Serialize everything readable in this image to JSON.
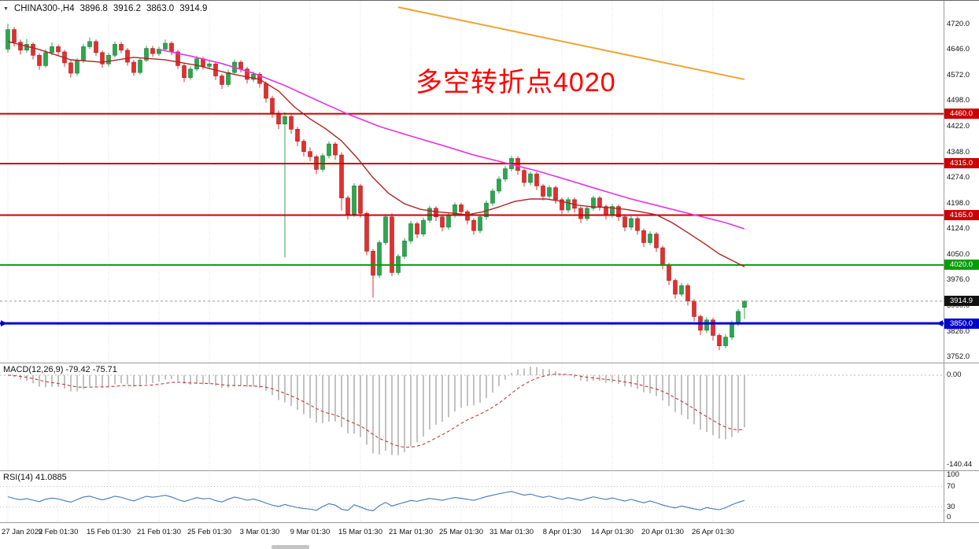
{
  "header": {
    "symbol_period": "CHINA300-,H4",
    "open": "3896.8",
    "high": "3916.2",
    "low": "3863.0",
    "close": "3914.9"
  },
  "annotation": {
    "text": "多空转折点4020",
    "color": "#FF0000"
  },
  "colors": {
    "bull": "#2EA64E",
    "bull_border": "#157A33",
    "bear": "#E03030",
    "bear_border": "#A61E1E",
    "ma_fast": "#B22222",
    "ma_slow": "#E632E6",
    "trendline": "#EFA431",
    "macd_hist": "#B3B3B3",
    "macd_signal": "#C03A3A",
    "rsi_line": "#4178B8",
    "grid": "#DCDCDC",
    "separator": "#9A9A9A",
    "current_price_badge": "#111111",
    "current_price_line": "#999999"
  },
  "price_scale": {
    "ticks": [
      "4720.0",
      "4646.0",
      "4572.0",
      "4498.0",
      "4422.0",
      "4348.0",
      "4274.0",
      "4198.0",
      "4124.0",
      "4050.0",
      "3976.0",
      "3900.0",
      "3826.0",
      "3752.0"
    ]
  },
  "time_axis": {
    "labels": [
      {
        "text": "27 Jan 2022",
        "bar": 0
      },
      {
        "text": "9 Feb 01:30",
        "bar": 8
      },
      {
        "text": "15 Feb 01:30",
        "bar": 16
      },
      {
        "text": "21 Feb 01:30",
        "bar": 24
      },
      {
        "text": "25 Feb 01:30",
        "bar": 32
      },
      {
        "text": "3 Mar 01:30",
        "bar": 40
      },
      {
        "text": "9 Mar 01:30",
        "bar": 48
      },
      {
        "text": "15 Mar 01:30",
        "bar": 56
      },
      {
        "text": "21 Mar 01:30",
        "bar": 64
      },
      {
        "text": "25 Mar 01:30",
        "bar": 72
      },
      {
        "text": "31 Mar 01:30",
        "bar": 80
      },
      {
        "text": "8 Apr 01:30",
        "bar": 88
      },
      {
        "text": "14 Apr 01:30",
        "bar": 96
      },
      {
        "text": "20 Apr 01:30",
        "bar": 104
      },
      {
        "text": "26 Apr 01:30",
        "bar": 112
      }
    ]
  },
  "hlines": [
    {
      "price": 4460.0,
      "label": "4460.0",
      "color": "#CC0000",
      "width": 2,
      "arrows": false
    },
    {
      "price": 4315.0,
      "label": "4315.0",
      "color": "#CC0000",
      "width": 2,
      "arrows": false
    },
    {
      "price": 4165.0,
      "label": "4165.0",
      "color": "#CC0000",
      "width": 2,
      "arrows": false
    },
    {
      "price": 4020.0,
      "label": "4020.0",
      "color": "#00A000",
      "width": 2,
      "arrows": false
    },
    {
      "price": 3850.0,
      "label": "3850.0",
      "color": "#0000CD",
      "width": 3,
      "arrows": true
    }
  ],
  "current_price": {
    "value": 3914.9,
    "label": "3914.9"
  },
  "indicators": {
    "macd": {
      "label": "MACD(12,26,9)",
      "values_text": "-79.42 -75.71",
      "scale_labels": [
        {
          "text": "0.00",
          "value": 0
        },
        {
          "text": "-140.44",
          "value": -140.44
        }
      ]
    },
    "rsi": {
      "label": "RSI(14)",
      "value_text": "41.0885",
      "levels": [
        70,
        30
      ],
      "scale_labels": [
        {
          "text": "100",
          "value": 100
        },
        {
          "text": "70",
          "value": 70
        },
        {
          "text": "30",
          "value": 30
        },
        {
          "text": "0",
          "value": 0
        }
      ]
    }
  },
  "chart_data": {
    "type": "candlestick",
    "symbol": "CHINA300-",
    "timeframe": "H4",
    "y_axis_range": [
      3752,
      4720
    ],
    "candles": [
      [
        4648,
        4722,
        4638,
        4705
      ],
      [
        4705,
        4712,
        4655,
        4668
      ],
      [
        4668,
        4676,
        4632,
        4645
      ],
      [
        4645,
        4678,
        4638,
        4662
      ],
      [
        4662,
        4668,
        4618,
        4630
      ],
      [
        4630,
        4636,
        4588,
        4600
      ],
      [
        4600,
        4648,
        4594,
        4638
      ],
      [
        4638,
        4668,
        4630,
        4655
      ],
      [
        4655,
        4661,
        4628,
        4640
      ],
      [
        4640,
        4646,
        4596,
        4608
      ],
      [
        4608,
        4615,
        4565,
        4578
      ],
      [
        4578,
        4622,
        4570,
        4615
      ],
      [
        4615,
        4663,
        4608,
        4655
      ],
      [
        4655,
        4682,
        4648,
        4670
      ],
      [
        4670,
        4676,
        4628,
        4638
      ],
      [
        4638,
        4644,
        4594,
        4605
      ],
      [
        4605,
        4638,
        4597,
        4630
      ],
      [
        4630,
        4670,
        4624,
        4662
      ],
      [
        4662,
        4669,
        4636,
        4645
      ],
      [
        4645,
        4651,
        4600,
        4610
      ],
      [
        4610,
        4617,
        4570,
        4580
      ],
      [
        4580,
        4624,
        4574,
        4616
      ],
      [
        4616,
        4658,
        4610,
        4650
      ],
      [
        4650,
        4657,
        4626,
        4635
      ],
      [
        4635,
        4655,
        4628,
        4648
      ],
      [
        4648,
        4676,
        4641,
        4665
      ],
      [
        4665,
        4671,
        4630,
        4640
      ],
      [
        4640,
        4646,
        4590,
        4600
      ],
      [
        4600,
        4606,
        4552,
        4565
      ],
      [
        4565,
        4598,
        4558,
        4590
      ],
      [
        4590,
        4628,
        4584,
        4620
      ],
      [
        4620,
        4626,
        4588,
        4598
      ],
      [
        4598,
        4614,
        4590,
        4605
      ],
      [
        4605,
        4611,
        4558,
        4570
      ],
      [
        4570,
        4576,
        4532,
        4545
      ],
      [
        4545,
        4588,
        4539,
        4580
      ],
      [
        4580,
        4618,
        4574,
        4610
      ],
      [
        4610,
        4616,
        4580,
        4590
      ],
      [
        4590,
        4596,
        4548,
        4560
      ],
      [
        4560,
        4583,
        4552,
        4575
      ],
      [
        4575,
        4581,
        4536,
        4548
      ],
      [
        4548,
        4554,
        4492,
        4505
      ],
      [
        4505,
        4512,
        4448,
        4462
      ],
      [
        4462,
        4470,
        4415,
        4430
      ],
      [
        4430,
        4465,
        4042,
        4452
      ],
      [
        4452,
        4458,
        4402,
        4415
      ],
      [
        4415,
        4422,
        4366,
        4380
      ],
      [
        4380,
        4386,
        4336,
        4350
      ],
      [
        4350,
        4362,
        4322,
        4335
      ],
      [
        4335,
        4341,
        4284,
        4298
      ],
      [
        4298,
        4345,
        4290,
        4338
      ],
      [
        4338,
        4380,
        4330,
        4372
      ],
      [
        4372,
        4378,
        4326,
        4340
      ],
      [
        4340,
        4348,
        4178,
        4215
      ],
      [
        4215,
        4222,
        4152,
        4168
      ],
      [
        4168,
        4258,
        4160,
        4250
      ],
      [
        4250,
        4256,
        4158,
        4170
      ],
      [
        4170,
        4176,
        4048,
        4060
      ],
      [
        4060,
        4066,
        3925,
        3990
      ],
      [
        3990,
        4092,
        3982,
        4085
      ],
      [
        4085,
        4168,
        4078,
        4160
      ],
      [
        4160,
        4170,
        3988,
        3998
      ],
      [
        3998,
        4052,
        3990,
        4045
      ],
      [
        4045,
        4098,
        4038,
        4090
      ],
      [
        4090,
        4148,
        4082,
        4140
      ],
      [
        4140,
        4146,
        4098,
        4110
      ],
      [
        4110,
        4158,
        4102,
        4150
      ],
      [
        4150,
        4192,
        4142,
        4185
      ],
      [
        4185,
        4191,
        4148,
        4160
      ],
      [
        4160,
        4166,
        4118,
        4130
      ],
      [
        4130,
        4172,
        4122,
        4165
      ],
      [
        4165,
        4202,
        4158,
        4195
      ],
      [
        4195,
        4201,
        4166,
        4175
      ],
      [
        4175,
        4181,
        4138,
        4150
      ],
      [
        4150,
        4156,
        4108,
        4120
      ],
      [
        4120,
        4168,
        4112,
        4160
      ],
      [
        4160,
        4208,
        4152,
        4200
      ],
      [
        4200,
        4242,
        4192,
        4235
      ],
      [
        4235,
        4278,
        4228,
        4270
      ],
      [
        4270,
        4308,
        4262,
        4300
      ],
      [
        4300,
        4338,
        4292,
        4330
      ],
      [
        4330,
        4336,
        4282,
        4295
      ],
      [
        4295,
        4301,
        4248,
        4260
      ],
      [
        4260,
        4292,
        4252,
        4285
      ],
      [
        4285,
        4291,
        4238,
        4250
      ],
      [
        4250,
        4256,
        4208,
        4220
      ],
      [
        4220,
        4252,
        4212,
        4245
      ],
      [
        4245,
        4251,
        4198,
        4210
      ],
      [
        4210,
        4216,
        4168,
        4180
      ],
      [
        4180,
        4218,
        4172,
        4210
      ],
      [
        4210,
        4216,
        4172,
        4185
      ],
      [
        4185,
        4191,
        4142,
        4155
      ],
      [
        4155,
        4192,
        4148,
        4185
      ],
      [
        4185,
        4222,
        4178,
        4215
      ],
      [
        4215,
        4221,
        4178,
        4190
      ],
      [
        4190,
        4196,
        4152,
        4165
      ],
      [
        4165,
        4198,
        4158,
        4190
      ],
      [
        4190,
        4196,
        4148,
        4160
      ],
      [
        4160,
        4166,
        4118,
        4130
      ],
      [
        4130,
        4162,
        4122,
        4155
      ],
      [
        4155,
        4161,
        4108,
        4120
      ],
      [
        4120,
        4126,
        4072,
        4085
      ],
      [
        4085,
        4118,
        4078,
        4110
      ],
      [
        4110,
        4116,
        4058,
        4070
      ],
      [
        4070,
        4076,
        4008,
        4020
      ],
      [
        4020,
        4026,
        3962,
        3975
      ],
      [
        3975,
        3981,
        3922,
        3935
      ],
      [
        3935,
        3968,
        3928,
        3960
      ],
      [
        3960,
        3966,
        3902,
        3915
      ],
      [
        3915,
        3921,
        3856,
        3870
      ],
      [
        3870,
        3876,
        3816,
        3830
      ],
      [
        3830,
        3868,
        3822,
        3860
      ],
      [
        3860,
        3866,
        3800,
        3815
      ],
      [
        3815,
        3821,
        3772,
        3785
      ],
      [
        3785,
        3818,
        3778,
        3810
      ],
      [
        3810,
        3858,
        3802,
        3850
      ],
      [
        3850,
        3892,
        3842,
        3885
      ],
      [
        3896.8,
        3916.2,
        3863,
        3914.9
      ]
    ],
    "ma_fast_points": [
      [
        0,
        4670
      ],
      [
        5,
        4647
      ],
      [
        10,
        4617
      ],
      [
        15,
        4610
      ],
      [
        20,
        4624
      ],
      [
        25,
        4617
      ],
      [
        30,
        4601
      ],
      [
        35,
        4578
      ],
      [
        40,
        4560
      ],
      [
        43,
        4526
      ],
      [
        45.5,
        4480
      ],
      [
        48,
        4445
      ],
      [
        50.5,
        4416
      ],
      [
        53,
        4381
      ],
      [
        55.5,
        4331
      ],
      [
        58,
        4274
      ],
      [
        60.5,
        4228
      ],
      [
        63,
        4198
      ],
      [
        65.5,
        4182
      ],
      [
        68,
        4175
      ],
      [
        70.5,
        4171
      ],
      [
        73,
        4166
      ],
      [
        75.5,
        4175
      ],
      [
        78,
        4189
      ],
      [
        80.5,
        4205
      ],
      [
        83,
        4212
      ],
      [
        85.5,
        4212
      ],
      [
        88,
        4205
      ],
      [
        90.5,
        4194
      ],
      [
        93,
        4189
      ],
      [
        95.5,
        4187
      ],
      [
        98,
        4182
      ],
      [
        100.5,
        4175
      ],
      [
        103,
        4166
      ],
      [
        105.5,
        4143
      ],
      [
        108,
        4114
      ],
      [
        110.5,
        4084
      ],
      [
        113,
        4052
      ],
      [
        115.5,
        4029
      ],
      [
        117,
        4015
      ]
    ],
    "ma_slow_points": [
      [
        24,
        4647
      ],
      [
        29,
        4628
      ],
      [
        34,
        4606
      ],
      [
        39,
        4578
      ],
      [
        44,
        4542
      ],
      [
        49,
        4500
      ],
      [
        54,
        4459
      ],
      [
        59,
        4423
      ],
      [
        64,
        4395
      ],
      [
        69,
        4368
      ],
      [
        74,
        4340
      ],
      [
        79,
        4317
      ],
      [
        84,
        4294
      ],
      [
        89,
        4267
      ],
      [
        94,
        4239
      ],
      [
        99,
        4212
      ],
      [
        104,
        4189
      ],
      [
        109,
        4166
      ],
      [
        114,
        4143
      ],
      [
        117,
        4125
      ]
    ],
    "orange_trendline": [
      [
        62,
        4770
      ],
      [
        117,
        4560
      ]
    ]
  }
}
